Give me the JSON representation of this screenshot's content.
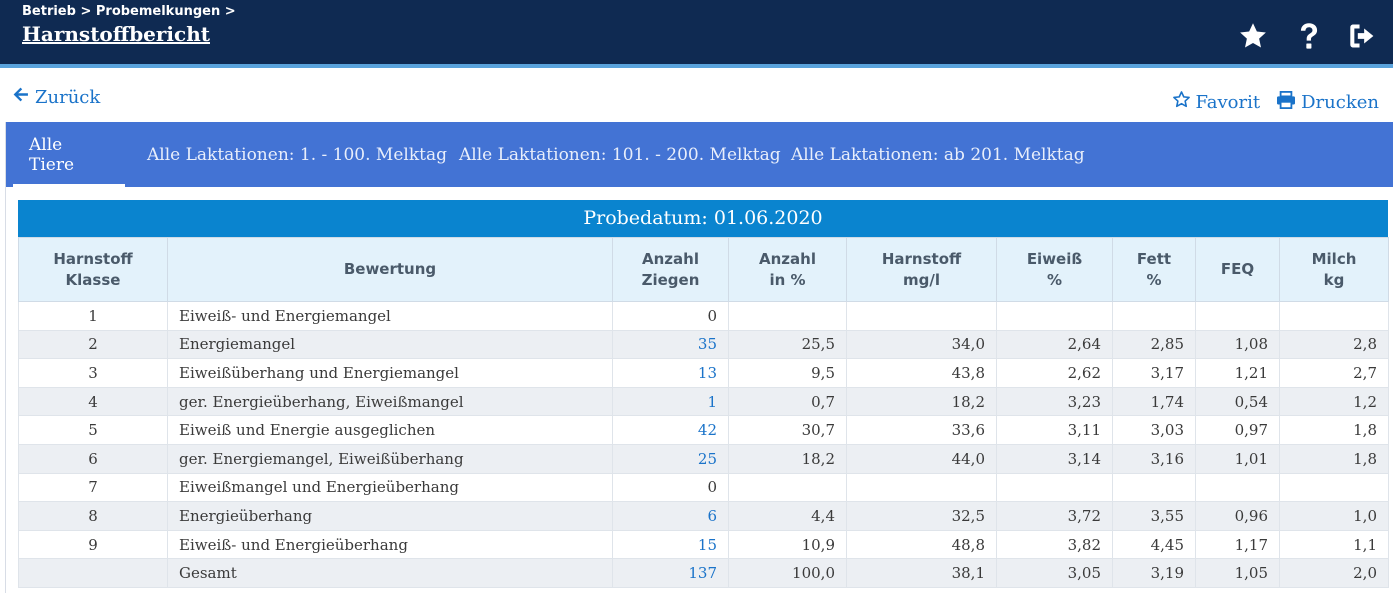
{
  "header": {
    "breadcrumb": "Betrieb > Probemelkungen >",
    "title": "Harnstoffbericht",
    "icons": [
      "star-icon",
      "help-icon",
      "logout-icon"
    ]
  },
  "nav": {
    "back_label": "Zurück",
    "favorite_label": "Favorit",
    "print_label": "Drucken"
  },
  "tabs": [
    {
      "label": "Alle Tiere",
      "active": true
    },
    {
      "label": "Alle Laktationen: 1. - 100. Melktag",
      "active": false
    },
    {
      "label": "Alle Laktationen: 101. - 200. Melktag",
      "active": false
    },
    {
      "label": "Alle Laktationen: ab 201. Melktag",
      "active": false
    }
  ],
  "report": {
    "title": "Probedatum: 01.06.2020",
    "columns": [
      {
        "line1": "Harnstoff",
        "line2": "Klasse"
      },
      {
        "line1": "Bewertung",
        "line2": ""
      },
      {
        "line1": "Anzahl",
        "line2": "Ziegen"
      },
      {
        "line1": "Anzahl",
        "line2": "in %"
      },
      {
        "line1": "Harnstoff",
        "line2": "mg/l"
      },
      {
        "line1": "Eiweiß",
        "line2": "%"
      },
      {
        "line1": "Fett",
        "line2": "%"
      },
      {
        "line1": "FEQ",
        "line2": ""
      },
      {
        "line1": "Milch",
        "line2": "kg"
      }
    ],
    "rows": [
      [
        "1",
        "Eiweiß- und Energiemangel",
        "0",
        "",
        "",
        "",
        "",
        "",
        ""
      ],
      [
        "2",
        "Energiemangel",
        "35",
        "25,5",
        "34,0",
        "2,64",
        "2,85",
        "1,08",
        "2,8"
      ],
      [
        "3",
        "Eiweißüberhang und Energiemangel",
        "13",
        "9,5",
        "43,8",
        "2,62",
        "3,17",
        "1,21",
        "2,7"
      ],
      [
        "4",
        "ger. Energieüberhang, Eiweißmangel",
        "1",
        "0,7",
        "18,2",
        "3,23",
        "1,74",
        "0,54",
        "1,2"
      ],
      [
        "5",
        "Eiweiß und Energie ausgeglichen",
        "42",
        "30,7",
        "33,6",
        "3,11",
        "3,03",
        "0,97",
        "1,8"
      ],
      [
        "6",
        "ger. Energiemangel, Eiweißüberhang",
        "25",
        "18,2",
        "44,0",
        "3,14",
        "3,16",
        "1,01",
        "1,8"
      ],
      [
        "7",
        "Eiweißmangel und Energieüberhang",
        "0",
        "",
        "",
        "",
        "",
        "",
        ""
      ],
      [
        "8",
        "Energieüberhang",
        "6",
        "4,4",
        "32,5",
        "3,72",
        "3,55",
        "0,96",
        "1,0"
      ],
      [
        "9",
        "Eiweiß- und Energieüberhang",
        "15",
        "10,9",
        "48,8",
        "3,82",
        "4,45",
        "1,17",
        "1,1"
      ],
      [
        "",
        "Gesamt",
        "137",
        "100,0",
        "38,1",
        "3,05",
        "3,19",
        "1,05",
        "2,0"
      ]
    ]
  },
  "colors": {
    "header_bg": "#0f2a52",
    "header_border": "#5aa3dc",
    "tabs_bg": "#4373d4",
    "report_title_bg": "#0a84cf",
    "link": "#1a73c9",
    "table_header_bg": "#e3f2fb"
  }
}
